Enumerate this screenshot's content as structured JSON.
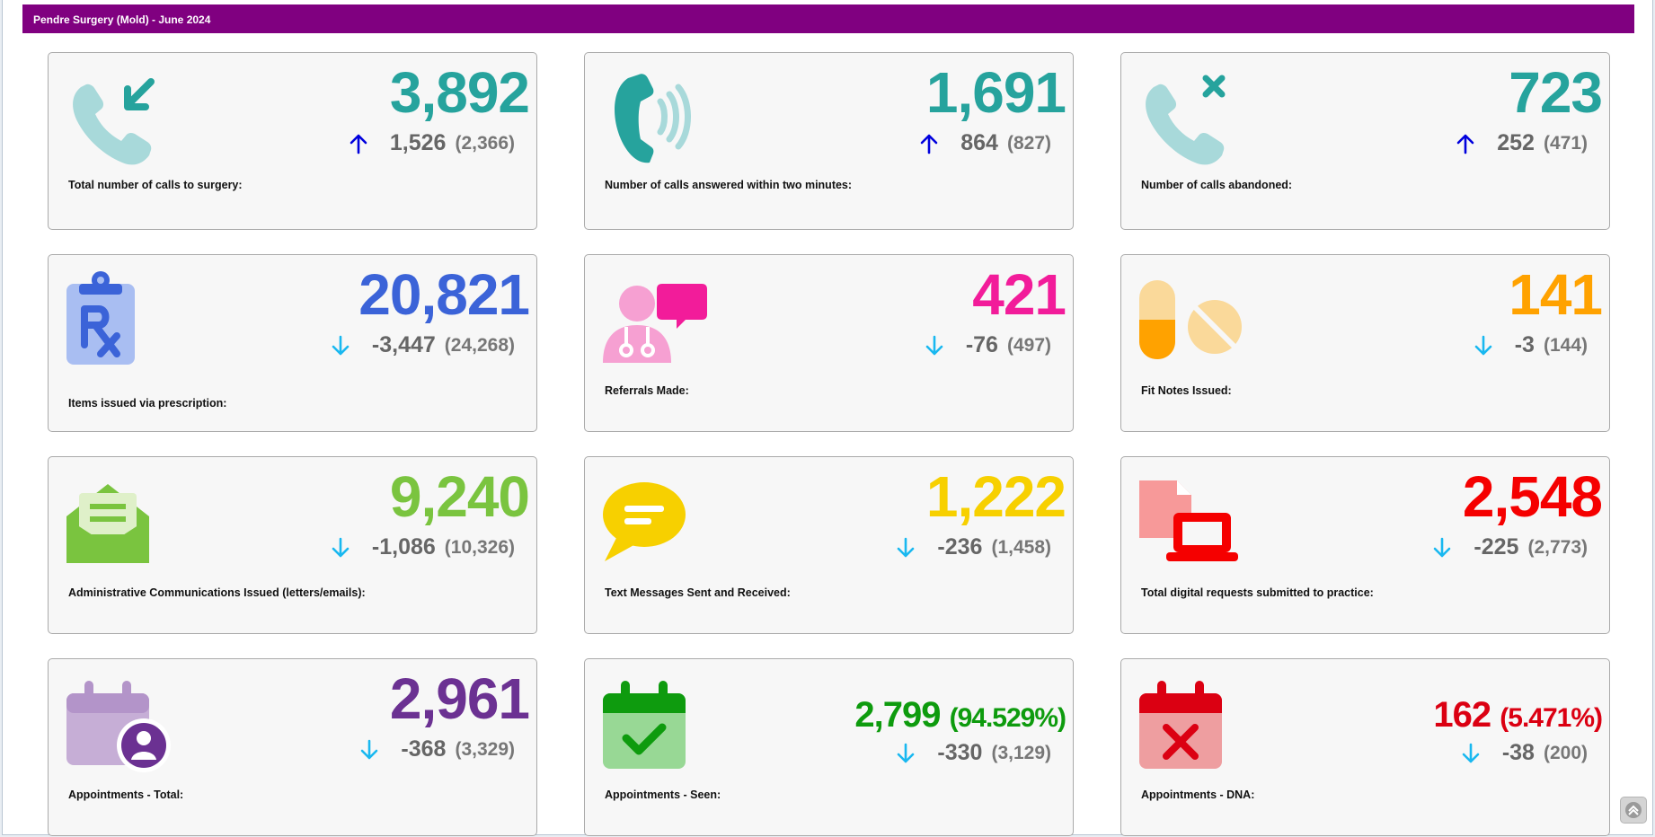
{
  "page": {
    "title": "Pendre Surgery (Mold) - June 2024"
  },
  "colors": {
    "header": "#800080",
    "up_arrow": "#0000dd",
    "down_arrow": "#19b8f0",
    "teal": "#26a39d",
    "blue": "#3b63d8",
    "pink": "#f21c9a",
    "orange": "#ffa200",
    "green": "#7ac43f",
    "yellow": "#f7d000",
    "red": "#f50000",
    "purple": "#6b3192",
    "dark_green": "#0e9b0e",
    "dark_red": "#db0012"
  },
  "cards": [
    {
      "id": "calls-total",
      "icon": "phone-incoming-icon",
      "value": "3,892",
      "value_color": "#26a39d",
      "delta_dir": "up",
      "delta": "1,526",
      "previous": "(2,366)",
      "label": "Total number of calls to surgery:"
    },
    {
      "id": "calls-answered",
      "icon": "phone-ringing-icon",
      "value": "1,691",
      "value_color": "#26a39d",
      "delta_dir": "up",
      "delta": "864",
      "previous": "(827)",
      "label": "Number of calls answered within two minutes:"
    },
    {
      "id": "calls-abandoned",
      "icon": "phone-missed-icon",
      "value": "723",
      "value_color": "#26a39d",
      "delta_dir": "up",
      "delta": "252",
      "previous": "(471)",
      "label": "Number of calls abandoned:"
    },
    {
      "id": "prescriptions",
      "icon": "prescription-clipboard-icon",
      "value": "20,821",
      "value_color": "#3b63d8",
      "delta_dir": "down",
      "delta": "-3,447",
      "previous": "(24,268)",
      "label": "Items issued via prescription:"
    },
    {
      "id": "referrals",
      "icon": "doctor-chat-icon",
      "value": "421",
      "value_color": "#f21c9a",
      "delta_dir": "down",
      "delta": "-76",
      "previous": "(497)",
      "label": "Referrals Made:"
    },
    {
      "id": "fit-notes",
      "icon": "pills-icon",
      "value": "141",
      "value_color": "#ffa200",
      "delta_dir": "down",
      "delta": "-3",
      "previous": "(144)",
      "label": "Fit Notes Issued:"
    },
    {
      "id": "admin-comms",
      "icon": "envelope-open-icon",
      "value": "9,240",
      "value_color": "#7ac43f",
      "delta_dir": "down",
      "delta": "-1,086",
      "previous": "(10,326)",
      "label": "Administrative Communications Issued (letters/emails):"
    },
    {
      "id": "text-messages",
      "icon": "message-bubble-icon",
      "value": "1,222",
      "value_color": "#f7d000",
      "delta_dir": "down",
      "delta": "-236",
      "previous": "(1,458)",
      "label": "Text Messages Sent and Received:"
    },
    {
      "id": "digital-requests",
      "icon": "laptop-document-icon",
      "value": "2,548",
      "value_color": "#f50000",
      "delta_dir": "down",
      "delta": "-225",
      "previous": "(2,773)",
      "label": "Total digital requests submitted to practice:"
    },
    {
      "id": "appt-total",
      "icon": "calendar-user-icon",
      "value": "2,961",
      "value_color": "#6b3192",
      "delta_dir": "down",
      "delta": "-368",
      "previous": "(3,329)",
      "label": "Appointments - Total:"
    },
    {
      "id": "appt-seen",
      "icon": "calendar-check-icon",
      "value": "2,799",
      "value_pct": "(94.529%)",
      "value_color": "#0e9b0e",
      "delta_dir": "down",
      "delta": "-330",
      "previous": "(3,129)",
      "label": "Appointments - Seen:"
    },
    {
      "id": "appt-dna",
      "icon": "calendar-x-icon",
      "value": "162",
      "value_pct": "(5.471%)",
      "value_color": "#db0012",
      "delta_dir": "down",
      "delta": "-38",
      "previous": "(200)",
      "label": "Appointments - DNA:"
    }
  ],
  "scroll_top": {
    "icon": "chevron-up-icon"
  }
}
